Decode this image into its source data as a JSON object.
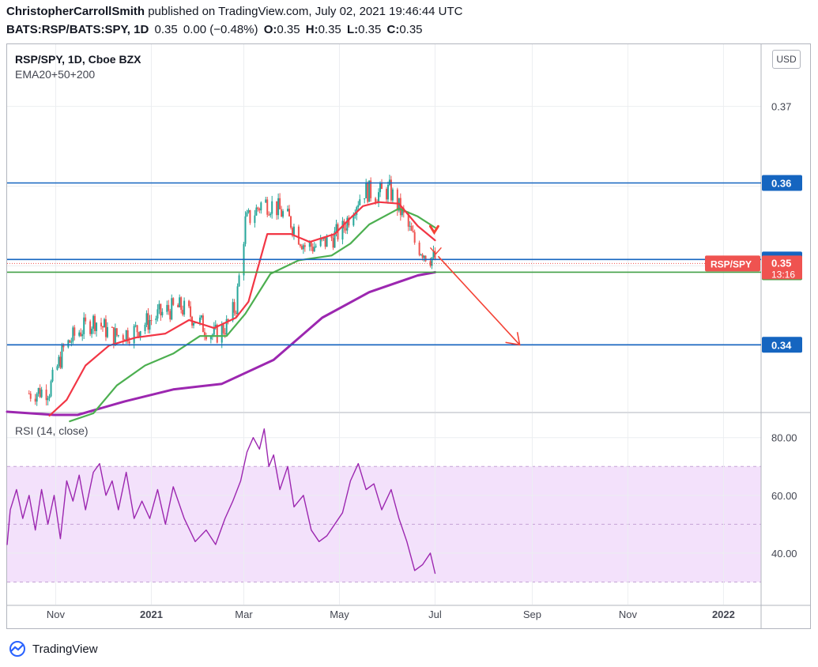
{
  "header": {
    "author": "ChristopherCarrollSmith",
    "published_text": "published on TradingView.com, July 02, 2021 19:46:44 UTC",
    "symbol_line": {
      "symbol": "BATS:RSP/BATS:SPY, 1D",
      "price": "0.35",
      "change": "0.00 (−0.48%)",
      "open_label": "O:",
      "open": "0.35",
      "high_label": "H:",
      "high": "0.35",
      "low_label": "L:",
      "low": "0.35",
      "close_label": "C:",
      "close": "0.35"
    }
  },
  "legend": {
    "title": "RSP/SPY, 1D, Cboe BZX",
    "indicator": "EMA20+50+200",
    "rsi_title": "RSI (14, close)"
  },
  "currency_button": "USD",
  "footer": {
    "brand": "TradingView"
  },
  "colors": {
    "up": "#26a69a",
    "down": "#ef5350",
    "ema20": "#f23645",
    "ema50": "#4caf50",
    "ema200": "#9c27b0",
    "hline_blue": "#1565c0",
    "hline_green": "#43a047",
    "rsi_line": "#9c27b0",
    "rsi_band": "#f3e1fb",
    "arrow": "#f44336"
  },
  "chart_data": [
    {
      "type": "candlestick",
      "title": "RSP/SPY, 1D, Cboe BZX",
      "ylim": [
        0.3317,
        0.3778
      ],
      "xlim": [
        "2020-10-01",
        "2022-01-25"
      ],
      "x_ticks": [
        "Nov",
        "2021",
        "Mar",
        "May",
        "Jul",
        "Sep",
        "Nov",
        "2022"
      ],
      "x_tick_dates": [
        "2020-11-01",
        "2021-01-01",
        "2021-03-01",
        "2021-05-01",
        "2021-07-01",
        "2021-09-01",
        "2021-11-01",
        "2022-01-01"
      ],
      "y_ticks": [
        0.34,
        0.35,
        0.36,
        0.37
      ],
      "y_tick_labels": [
        "0.34",
        "0.35",
        "0.36",
        "0.37"
      ],
      "price_path": [
        [
          "2020-10-15",
          0.334
        ],
        [
          "2020-10-28",
          0.3345
        ],
        [
          "2020-11-06",
          0.3395
        ],
        [
          "2020-11-14",
          0.3415
        ],
        [
          "2020-11-26",
          0.3432
        ],
        [
          "2020-12-08",
          0.3412
        ],
        [
          "2020-12-21",
          0.3418
        ],
        [
          "2020-12-31",
          0.3432
        ],
        [
          "2021-01-12",
          0.3445
        ],
        [
          "2021-01-20",
          0.3448
        ],
        [
          "2021-01-30",
          0.3432
        ],
        [
          "2021-02-10",
          0.3412
        ],
        [
          "2021-02-18",
          0.3425
        ],
        [
          "2021-02-24",
          0.345
        ],
        [
          "2021-03-02",
          0.3555
        ],
        [
          "2021-03-07",
          0.3565
        ],
        [
          "2021-03-13",
          0.358
        ],
        [
          "2021-03-21",
          0.3575
        ],
        [
          "2021-03-31",
          0.3555
        ],
        [
          "2021-04-09",
          0.3525
        ],
        [
          "2021-04-18",
          0.3525
        ],
        [
          "2021-04-26",
          0.3535
        ],
        [
          "2021-05-03",
          0.3545
        ],
        [
          "2021-05-10",
          0.3575
        ],
        [
          "2021-05-17",
          0.3595
        ],
        [
          "2021-05-25",
          0.359
        ],
        [
          "2021-06-02",
          0.3595
        ],
        [
          "2021-06-10",
          0.3565
        ],
        [
          "2021-06-18",
          0.353
        ],
        [
          "2021-06-25",
          0.3515
        ],
        [
          "2021-07-01",
          0.3508
        ]
      ],
      "ema20": [
        [
          "2020-10-28",
          0.3312
        ],
        [
          "2020-11-08",
          0.3332
        ],
        [
          "2020-11-20",
          0.3375
        ],
        [
          "2020-12-05",
          0.34
        ],
        [
          "2020-12-22",
          0.341
        ],
        [
          "2021-01-10",
          0.3415
        ],
        [
          "2021-01-25",
          0.3432
        ],
        [
          "2021-02-10",
          0.3422
        ],
        [
          "2021-02-24",
          0.3435
        ],
        [
          "2021-03-04",
          0.3455
        ],
        [
          "2021-03-16",
          0.354
        ],
        [
          "2021-03-31",
          0.354
        ],
        [
          "2021-04-12",
          0.353
        ],
        [
          "2021-04-28",
          0.354
        ],
        [
          "2021-05-08",
          0.356
        ],
        [
          "2021-05-16",
          0.3575
        ],
        [
          "2021-05-26",
          0.358
        ],
        [
          "2021-06-08",
          0.3578
        ],
        [
          "2021-06-20",
          0.355
        ],
        [
          "2021-07-01",
          0.3532
        ]
      ],
      "ema50": [
        [
          "2020-11-10",
          0.3305
        ],
        [
          "2020-11-25",
          0.3315
        ],
        [
          "2020-12-10",
          0.335
        ],
        [
          "2020-12-28",
          0.3375
        ],
        [
          "2021-01-15",
          0.339
        ],
        [
          "2021-02-01",
          0.3412
        ],
        [
          "2021-02-18",
          0.3412
        ],
        [
          "2021-03-02",
          0.344
        ],
        [
          "2021-03-18",
          0.349
        ],
        [
          "2021-04-05",
          0.3507
        ],
        [
          "2021-04-26",
          0.3513
        ],
        [
          "2021-05-08",
          0.3528
        ],
        [
          "2021-05-20",
          0.3552
        ],
        [
          "2021-06-08",
          0.3572
        ],
        [
          "2021-06-20",
          0.3562
        ],
        [
          "2021-07-01",
          0.3548
        ]
      ],
      "ema200": [
        [
          "2020-10-01",
          0.3317
        ],
        [
          "2020-10-31",
          0.3313
        ],
        [
          "2020-11-15",
          0.3313
        ],
        [
          "2020-12-15",
          0.333
        ],
        [
          "2021-01-15",
          0.3345
        ],
        [
          "2021-02-15",
          0.3352
        ],
        [
          "2021-03-20",
          0.3382
        ],
        [
          "2021-04-20",
          0.3435
        ],
        [
          "2021-05-20",
          0.3467
        ],
        [
          "2021-06-20",
          0.3488
        ],
        [
          "2021-07-01",
          0.3492
        ]
      ],
      "horizontal_lines": [
        {
          "value": 0.3604,
          "label": "0.36",
          "color": "blue"
        },
        {
          "value": 0.3508,
          "label": "0.35",
          "color": "blue"
        },
        {
          "value": 0.3492,
          "label": "0.35",
          "color": "green"
        },
        {
          "value": 0.3401,
          "label": "0.34",
          "color": "blue"
        }
      ],
      "price_tag": {
        "name": "RSP/SPY",
        "value": "0.35",
        "countdown": "13:16",
        "level": 0.3503
      },
      "projection_arrow": [
        [
          "2021-07-03",
          0.3512
        ],
        [
          "2021-08-24",
          0.3401
        ]
      ]
    },
    {
      "type": "line",
      "title": "RSI (14, close)",
      "ylim": [
        22.2,
        88.4
      ],
      "y_ticks": [
        40,
        60,
        80
      ],
      "y_tick_labels": [
        "40.00",
        "60.00",
        "80.00"
      ],
      "band": [
        30,
        70
      ],
      "midline": 50,
      "values_path": [
        [
          "2020-10-01",
          43
        ],
        [
          "2020-10-03",
          55
        ],
        [
          "2020-10-07",
          62
        ],
        [
          "2020-10-11",
          52
        ],
        [
          "2020-10-15",
          60
        ],
        [
          "2020-10-19",
          48
        ],
        [
          "2020-10-23",
          62
        ],
        [
          "2020-10-27",
          50
        ],
        [
          "2020-10-31",
          60
        ],
        [
          "2020-11-04",
          45
        ],
        [
          "2020-11-08",
          65
        ],
        [
          "2020-11-12",
          58
        ],
        [
          "2020-11-16",
          67
        ],
        [
          "2020-11-20",
          55
        ],
        [
          "2020-11-25",
          68
        ],
        [
          "2020-11-29",
          71
        ],
        [
          "2020-12-03",
          60
        ],
        [
          "2020-12-07",
          65
        ],
        [
          "2020-12-11",
          55
        ],
        [
          "2020-12-16",
          68
        ],
        [
          "2020-12-21",
          52
        ],
        [
          "2020-12-26",
          58
        ],
        [
          "2020-12-31",
          52
        ],
        [
          "2021-01-05",
          62
        ],
        [
          "2021-01-10",
          50
        ],
        [
          "2021-01-15",
          63
        ],
        [
          "2021-01-22",
          52
        ],
        [
          "2021-01-29",
          44
        ],
        [
          "2021-02-05",
          48
        ],
        [
          "2021-02-11",
          43
        ],
        [
          "2021-02-17",
          52
        ],
        [
          "2021-02-22",
          58
        ],
        [
          "2021-02-27",
          65
        ],
        [
          "2021-03-03",
          75
        ],
        [
          "2021-03-07",
          80
        ],
        [
          "2021-03-11",
          76
        ],
        [
          "2021-03-14",
          83
        ],
        [
          "2021-03-17",
          70
        ],
        [
          "2021-03-20",
          74
        ],
        [
          "2021-03-24",
          62
        ],
        [
          "2021-03-29",
          70
        ],
        [
          "2021-04-02",
          56
        ],
        [
          "2021-04-08",
          60
        ],
        [
          "2021-04-13",
          48
        ],
        [
          "2021-04-18",
          44
        ],
        [
          "2021-04-23",
          46
        ],
        [
          "2021-05-03",
          54
        ],
        [
          "2021-05-08",
          65
        ],
        [
          "2021-05-13",
          71
        ],
        [
          "2021-05-18",
          62
        ],
        [
          "2021-05-23",
          64
        ],
        [
          "2021-05-28",
          55
        ],
        [
          "2021-06-03",
          62
        ],
        [
          "2021-06-08",
          52
        ],
        [
          "2021-06-13",
          44
        ],
        [
          "2021-06-18",
          34
        ],
        [
          "2021-06-23",
          36
        ],
        [
          "2021-06-28",
          40
        ],
        [
          "2021-07-01",
          33
        ]
      ]
    }
  ]
}
